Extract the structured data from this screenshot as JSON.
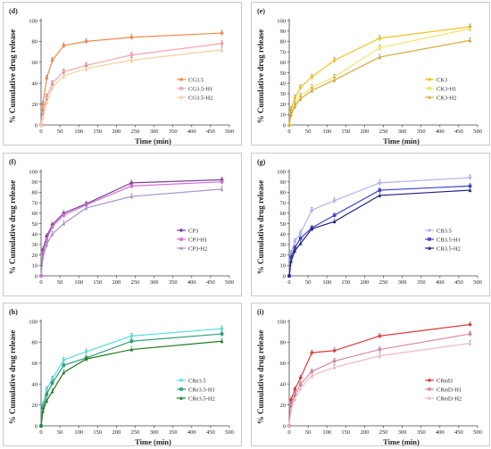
{
  "chart_data": [
    {
      "type": "line",
      "panel_label": "(d)",
      "xlabel": "Time (min)",
      "ylabel": "% Cumulative drug release",
      "xlim": [
        0,
        500
      ],
      "ylim": [
        0,
        100
      ],
      "xticks": [
        0,
        50,
        100,
        150,
        200,
        250,
        300,
        350,
        400,
        450,
        500
      ],
      "yticks": [
        0,
        20,
        40,
        60,
        80,
        100
      ],
      "legend_position": "center-right",
      "x": [
        0,
        5,
        15,
        30,
        60,
        120,
        240,
        480
      ],
      "series": [
        {
          "name": "CG3.5",
          "color": "#f08a4b",
          "marker": "circle",
          "values": [
            0,
            20,
            45,
            62,
            76,
            80,
            84,
            88
          ]
        },
        {
          "name": "CG3.5-H1",
          "color": "#f4a5ae",
          "marker": "square",
          "values": [
            0,
            12,
            27,
            40,
            51,
            57,
            67,
            78
          ]
        },
        {
          "name": "CG3.5-H2",
          "color": "#f6cf9b",
          "marker": "triangle",
          "values": [
            0,
            8,
            22,
            36,
            47,
            54,
            62,
            72
          ]
        }
      ]
    },
    {
      "type": "line",
      "panel_label": "(e)",
      "xlabel": "Time (min)",
      "ylabel": "% Cumulative drug release",
      "xlim": [
        0,
        500
      ],
      "ylim": [
        0,
        100
      ],
      "xticks": [
        0,
        50,
        100,
        150,
        200,
        250,
        300,
        350,
        400,
        450,
        500
      ],
      "yticks": [
        0,
        10,
        20,
        30,
        40,
        50,
        60,
        70,
        80,
        90,
        100
      ],
      "legend_position": "center-right",
      "x": [
        0,
        5,
        15,
        30,
        60,
        120,
        240,
        480
      ],
      "series": [
        {
          "name": "CK3",
          "color": "#f2c418",
          "marker": "circle",
          "values": [
            0,
            15,
            26,
            36,
            46,
            62,
            83,
            94
          ]
        },
        {
          "name": "CK3-H1",
          "color": "#f5e36a",
          "marker": "square",
          "values": [
            0,
            12,
            20,
            28,
            36,
            46,
            74,
            92
          ]
        },
        {
          "name": "CK3-H2",
          "color": "#d9a83a",
          "marker": "triangle",
          "values": [
            0,
            10,
            18,
            25,
            33,
            43,
            65,
            81
          ]
        }
      ]
    },
    {
      "type": "line",
      "panel_label": "(f)",
      "xlabel": "",
      "ylabel": "% Cumulative drug release",
      "xlim": [
        0,
        500
      ],
      "ylim": [
        0,
        100
      ],
      "xticks": [
        0,
        50,
        100,
        150,
        200,
        250,
        300,
        350,
        400,
        450,
        500
      ],
      "yticks": [
        0,
        10,
        20,
        30,
        40,
        50,
        60,
        70,
        80,
        90,
        100
      ],
      "legend_position": "center-right",
      "x": [
        0,
        5,
        15,
        30,
        60,
        120,
        240,
        480
      ],
      "series": [
        {
          "name": "CP3",
          "color": "#7b3f9e",
          "marker": "circle",
          "values": [
            0,
            25,
            38,
            49,
            60,
            69,
            89,
            92
          ]
        },
        {
          "name": "CP3-H1",
          "color": "#d46fd6",
          "marker": "square",
          "values": [
            0,
            22,
            35,
            47,
            58,
            68,
            86,
            90
          ]
        },
        {
          "name": "CP3-H2",
          "color": "#a993c9",
          "marker": "triangle",
          "values": [
            0,
            18,
            30,
            40,
            50,
            65,
            76,
            83
          ]
        }
      ]
    },
    {
      "type": "line",
      "panel_label": "(g)",
      "xlabel": "",
      "ylabel": "% Cumulative drug release",
      "xlim": [
        0,
        500
      ],
      "ylim": [
        0,
        100
      ],
      "xticks": [
        0,
        50,
        100,
        150,
        200,
        250,
        300,
        350,
        400,
        450,
        500
      ],
      "yticks": [
        0,
        10,
        20,
        30,
        40,
        50,
        60,
        70,
        80,
        90,
        100
      ],
      "legend_position": "center-right",
      "x": [
        0,
        5,
        15,
        30,
        60,
        120,
        240,
        480
      ],
      "series": [
        {
          "name": "CB3.5",
          "color": "#b3b3f0",
          "marker": "circle",
          "values": [
            0,
            22,
            33,
            41,
            63,
            72,
            89,
            94
          ]
        },
        {
          "name": "CB3.5-H1",
          "color": "#3a3fd6",
          "marker": "square",
          "values": [
            0,
            18,
            27,
            36,
            46,
            58,
            82,
            86
          ]
        },
        {
          "name": "CB3.5-H2",
          "color": "#1b1f86",
          "marker": "triangle",
          "values": [
            0,
            14,
            24,
            31,
            45,
            52,
            77,
            82
          ]
        }
      ]
    },
    {
      "type": "line",
      "panel_label": "(h)",
      "xlabel": "Time (min)",
      "ylabel": "% Cumulative drug release",
      "xlim": [
        0,
        500
      ],
      "ylim": [
        0,
        100
      ],
      "xticks": [
        0,
        50,
        100,
        150,
        200,
        250,
        300,
        350,
        400,
        450,
        500
      ],
      "yticks": [
        0,
        20,
        40,
        60,
        80,
        100
      ],
      "legend_position": "center-right",
      "x": [
        0,
        5,
        15,
        30,
        60,
        120,
        240,
        480
      ],
      "series": [
        {
          "name": "CRe3.5",
          "color": "#56dfe4",
          "marker": "circle",
          "values": [
            0,
            20,
            35,
            45,
            63,
            71,
            86,
            93
          ]
        },
        {
          "name": "CRe3.5-H1",
          "color": "#2e9e7a",
          "marker": "square",
          "values": [
            0,
            17,
            30,
            41,
            58,
            65,
            81,
            88
          ]
        },
        {
          "name": "CRe3.5-H2",
          "color": "#1f7a1f",
          "marker": "triangle",
          "values": [
            0,
            14,
            24,
            33,
            51,
            64,
            73,
            81
          ]
        }
      ]
    },
    {
      "type": "line",
      "panel_label": "(i)",
      "xlabel": "Time (min)",
      "ylabel": "% Cumulative drug release",
      "xlim": [
        0,
        500
      ],
      "ylim": [
        0,
        100
      ],
      "xticks": [
        0,
        50,
        100,
        150,
        200,
        250,
        300,
        350,
        400,
        450,
        500
      ],
      "yticks": [
        0,
        20,
        40,
        60,
        80,
        100
      ],
      "legend_position": "center-right",
      "x": [
        0,
        5,
        15,
        30,
        60,
        120,
        240,
        480
      ],
      "series": [
        {
          "name": "CRed3",
          "color": "#e03b3b",
          "marker": "circle",
          "values": [
            0,
            25,
            35,
            46,
            70,
            72,
            86,
            97
          ]
        },
        {
          "name": "CRed3-H1",
          "color": "#d98aa8",
          "marker": "square",
          "values": [
            0,
            20,
            30,
            40,
            52,
            62,
            73,
            88
          ]
        },
        {
          "name": "CRed3-H2",
          "color": "#f0b8c6",
          "marker": "triangle",
          "values": [
            0,
            16,
            26,
            36,
            48,
            56,
            67,
            79
          ]
        }
      ]
    }
  ]
}
